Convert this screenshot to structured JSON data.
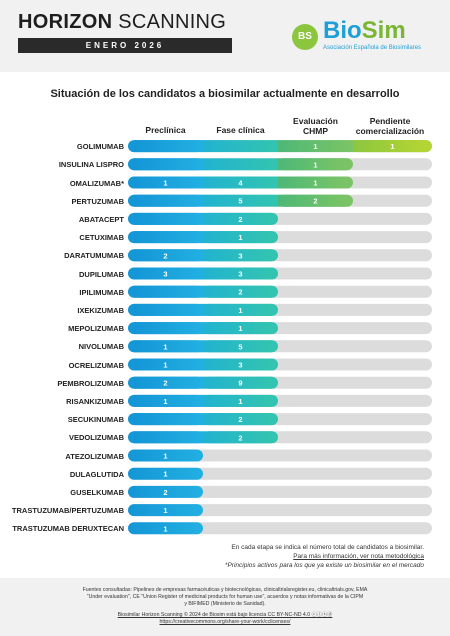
{
  "header": {
    "title_bold": "HORIZON",
    "title_light": "SCANNING",
    "date": "ENERO 2026",
    "logo_mark": "BS",
    "logo_bio": "Bio",
    "logo_sim": "Sim",
    "logo_subtitle": "Asociación Española de Biosimilares"
  },
  "colors": {
    "preclinica": "#1ea6df",
    "fase_clinica": "#2bbfb8",
    "evaluacion_chmp": "#6cc070",
    "pendiente": "#a4cf3a",
    "empty": "#dcdcdc"
  },
  "chart_data": {
    "type": "bar",
    "title": "Situación de los candidatos a biosimilar actualmente en desarrollo",
    "stages": [
      "Preclínica",
      "Fase clínica",
      "Evaluación CHMP",
      "Pendiente comercialización"
    ],
    "categories": [
      "GOLIMUMAB",
      "INSULINA LISPRO",
      "OMALIZUMAB*",
      "PERTUZUMAB",
      "ABATACEPT",
      "CETUXIMAB",
      "DARATUMUMAB",
      "DUPILUMAB",
      "IPILIMUMAB",
      "IXEKIZUMAB",
      "MEPOLIZUMAB",
      "NIVOLUMAB",
      "OCRELIZUMAB",
      "PEMBROLIZUMAB",
      "RISANKIZUMAB",
      "SECUKINUMAB",
      "VEDOLIZUMAB",
      "ATEZOLIZUMAB",
      "DULAGLUTIDA",
      "GUSELKUMAB",
      "TRASTUZUMAB/PERTUZUMAB",
      "TRASTUZUMAB DERUXTECAN"
    ],
    "rows": [
      {
        "stage_reached": 4,
        "values": [
          null,
          null,
          "1",
          "1"
        ]
      },
      {
        "stage_reached": 3,
        "values": [
          null,
          null,
          "1",
          null
        ]
      },
      {
        "stage_reached": 3,
        "values": [
          "1",
          "4",
          "1",
          null
        ]
      },
      {
        "stage_reached": 3,
        "values": [
          null,
          "5",
          "2",
          null
        ]
      },
      {
        "stage_reached": 2,
        "values": [
          null,
          "2",
          null,
          null
        ]
      },
      {
        "stage_reached": 2,
        "values": [
          null,
          "1",
          null,
          null
        ]
      },
      {
        "stage_reached": 2,
        "values": [
          "2",
          "3",
          null,
          null
        ]
      },
      {
        "stage_reached": 2,
        "values": [
          "3",
          "3",
          null,
          null
        ]
      },
      {
        "stage_reached": 2,
        "values": [
          null,
          "2",
          null,
          null
        ]
      },
      {
        "stage_reached": 2,
        "values": [
          null,
          "1",
          null,
          null
        ]
      },
      {
        "stage_reached": 2,
        "values": [
          null,
          "1",
          null,
          null
        ]
      },
      {
        "stage_reached": 2,
        "values": [
          "1",
          "5",
          null,
          null
        ]
      },
      {
        "stage_reached": 2,
        "values": [
          "1",
          "3",
          null,
          null
        ]
      },
      {
        "stage_reached": 2,
        "values": [
          "2",
          "9",
          null,
          null
        ]
      },
      {
        "stage_reached": 2,
        "values": [
          "1",
          "1",
          null,
          null
        ]
      },
      {
        "stage_reached": 2,
        "values": [
          null,
          "2",
          null,
          null
        ]
      },
      {
        "stage_reached": 2,
        "values": [
          null,
          "2",
          null,
          null
        ]
      },
      {
        "stage_reached": 1,
        "values": [
          "1",
          null,
          null,
          null
        ]
      },
      {
        "stage_reached": 1,
        "values": [
          "1",
          null,
          null,
          null
        ]
      },
      {
        "stage_reached": 1,
        "values": [
          "2",
          null,
          null,
          null
        ]
      },
      {
        "stage_reached": 1,
        "values": [
          "1",
          null,
          null,
          null
        ]
      },
      {
        "stage_reached": 1,
        "values": [
          "1",
          null,
          null,
          null
        ]
      }
    ]
  },
  "headers": {
    "preclinica": "Preclínica",
    "fase_clinica": "Fase clínica",
    "evaluacion_l1": "Evaluación",
    "evaluacion_l2": "CHMP",
    "pendiente_l1": "Pendiente",
    "pendiente_l2": "comercialización"
  },
  "notes": {
    "line1": "En cada etapa se indica el número total de candidatos a biosimilar.",
    "line2": "Para más información, ver nota metodológica",
    "line3": "*Principios activos para los que ya existe un biosimilar en el mercado"
  },
  "footer": {
    "line1": "Fuentes consultadas: Pipelines de empresas farmacéuticas y biotecnológicas, clinicaltrialsregister.eu, clinicaltrials.gov, EMA",
    "line2": "\"Under evaluation\", CE \"Union Register of medicinal products for human use\", acuerdos y notas informativas de la CIPM",
    "line3": "y BIFIMED (Ministerio de Sanidad).",
    "line4": "Biosimilar Horizon Scanning © 2024 de Biosim está bajo licencia CC BY-NC-ND 4.0  ⓒⓘⓢⓓ",
    "line5": "https://creativecommons.org/share-your-work/cclicenses/"
  }
}
